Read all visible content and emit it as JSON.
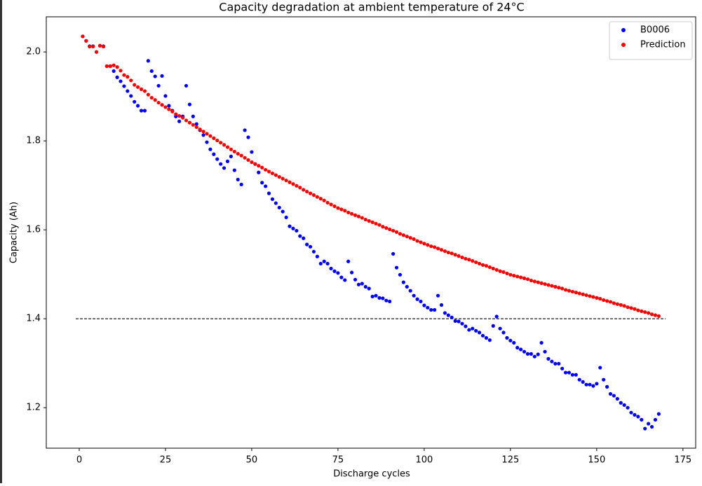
{
  "chart_data": {
    "type": "scatter",
    "title": "Capacity degradation at ambient temperature of 24°C",
    "xlabel": "Discharge cycles",
    "ylabel": "Capacity (Ah)",
    "xlim": [
      -9.55,
      178.7
    ],
    "ylim": [
      1.109,
      2.079
    ],
    "xticks": [
      0,
      25,
      50,
      75,
      100,
      125,
      150,
      175
    ],
    "yticks": [
      1.2,
      1.4,
      1.6,
      1.8,
      {
        "value": 2,
        "label": "2.0"
      }
    ],
    "legend": "upper right",
    "hline": {
      "y": 1.4,
      "x": [
        -1,
        170
      ],
      "color": "#000000"
    },
    "x": [
      1,
      2,
      3,
      4,
      5,
      6,
      7,
      8,
      9,
      10,
      11,
      12,
      13,
      14,
      15,
      16,
      17,
      18,
      19,
      20,
      21,
      22,
      23,
      24,
      25,
      26,
      27,
      28,
      29,
      30,
      31,
      32,
      33,
      34,
      35,
      36,
      37,
      38,
      39,
      40,
      41,
      42,
      43,
      44,
      45,
      46,
      47,
      48,
      49,
      50,
      51,
      52,
      53,
      54,
      55,
      56,
      57,
      58,
      59,
      60,
      61,
      62,
      63,
      64,
      65,
      66,
      67,
      68,
      69,
      70,
      71,
      72,
      73,
      74,
      75,
      76,
      77,
      78,
      79,
      80,
      81,
      82,
      83,
      84,
      85,
      86,
      87,
      88,
      89,
      90,
      91,
      92,
      93,
      94,
      95,
      96,
      97,
      98,
      99,
      100,
      101,
      102,
      103,
      104,
      105,
      106,
      107,
      108,
      109,
      110,
      111,
      112,
      113,
      114,
      115,
      116,
      117,
      118,
      119,
      120,
      121,
      122,
      123,
      124,
      125,
      126,
      127,
      128,
      129,
      130,
      131,
      132,
      133,
      134,
      135,
      136,
      137,
      138,
      139,
      140,
      141,
      142,
      143,
      144,
      145,
      146,
      147,
      148,
      149,
      150,
      151,
      152,
      153,
      154,
      155,
      156,
      157,
      158,
      159,
      160,
      161,
      162,
      163,
      164,
      165,
      166,
      167,
      168
    ],
    "series": [
      {
        "name": "B0006",
        "color": "#0000ff",
        "values": [
          2.035,
          2.025,
          2.013,
          2.013,
          2.0,
          2.014,
          2.013,
          1.968,
          1.968,
          1.957,
          1.943,
          1.934,
          1.923,
          1.912,
          1.901,
          1.888,
          1.879,
          1.868,
          1.868,
          1.98,
          1.957,
          1.945,
          1.924,
          1.946,
          1.901,
          1.879,
          1.868,
          1.855,
          1.844,
          1.855,
          1.924,
          1.882,
          1.855,
          1.838,
          1.824,
          1.813,
          1.797,
          1.781,
          1.77,
          1.759,
          1.748,
          1.739,
          1.754,
          1.765,
          1.734,
          1.713,
          1.702,
          1.824,
          1.808,
          1.775,
          1.748,
          1.729,
          1.706,
          1.698,
          1.682,
          1.669,
          1.66,
          1.65,
          1.641,
          1.628,
          1.608,
          1.603,
          1.598,
          1.586,
          1.581,
          1.567,
          1.562,
          1.551,
          1.54,
          1.524,
          1.529,
          1.524,
          1.513,
          1.507,
          1.503,
          1.493,
          1.487,
          1.529,
          1.504,
          1.488,
          1.477,
          1.479,
          1.472,
          1.468,
          1.45,
          1.452,
          1.447,
          1.446,
          1.441,
          1.439,
          1.546,
          1.515,
          1.499,
          1.482,
          1.472,
          1.463,
          1.452,
          1.444,
          1.439,
          1.43,
          1.425,
          1.42,
          1.42,
          1.452,
          1.431,
          1.413,
          1.408,
          1.403,
          1.395,
          1.394,
          1.389,
          1.383,
          1.375,
          1.378,
          1.373,
          1.369,
          1.362,
          1.357,
          1.352,
          1.384,
          1.405,
          1.378,
          1.369,
          1.357,
          1.351,
          1.346,
          1.335,
          1.331,
          1.326,
          1.321,
          1.321,
          1.315,
          1.32,
          1.346,
          1.326,
          1.31,
          1.304,
          1.299,
          1.299,
          1.288,
          1.279,
          1.279,
          1.274,
          1.274,
          1.263,
          1.258,
          1.252,
          1.252,
          1.249,
          1.254,
          1.29,
          1.263,
          1.247,
          1.231,
          1.227,
          1.22,
          1.211,
          1.206,
          1.2,
          1.189,
          1.184,
          1.18,
          1.173,
          1.153,
          1.164,
          1.157,
          1.173,
          1.186
        ]
      },
      {
        "name": "Prediction",
        "color": "#ff0000",
        "values": [
          2.035,
          2.025,
          2.012,
          2.012,
          2.0,
          2.014,
          2.012,
          1.968,
          1.968,
          1.97,
          1.966,
          1.958,
          1.948,
          1.944,
          1.936,
          1.926,
          1.921,
          1.916,
          1.912,
          1.904,
          1.897,
          1.892,
          1.886,
          1.881,
          1.876,
          1.871,
          1.866,
          1.86,
          1.856,
          1.852,
          1.846,
          1.841,
          1.836,
          1.831,
          1.826,
          1.821,
          1.816,
          1.811,
          1.806,
          1.801,
          1.796,
          1.791,
          1.786,
          1.781,
          1.776,
          1.771,
          1.767,
          1.762,
          1.757,
          1.752,
          1.748,
          1.744,
          1.74,
          1.735,
          1.731,
          1.727,
          1.723,
          1.719,
          1.715,
          1.711,
          1.707,
          1.703,
          1.699,
          1.695,
          1.69,
          1.686,
          1.682,
          1.678,
          1.674,
          1.67,
          1.666,
          1.661,
          1.657,
          1.653,
          1.649,
          1.646,
          1.643,
          1.639,
          1.636,
          1.633,
          1.63,
          1.627,
          1.623,
          1.62,
          1.617,
          1.614,
          1.611,
          1.607,
          1.604,
          1.601,
          1.598,
          1.595,
          1.591,
          1.588,
          1.585,
          1.582,
          1.579,
          1.575,
          1.572,
          1.569,
          1.566,
          1.563,
          1.561,
          1.558,
          1.555,
          1.552,
          1.549,
          1.547,
          1.544,
          1.541,
          1.538,
          1.535,
          1.533,
          1.53,
          1.527,
          1.524,
          1.521,
          1.519,
          1.516,
          1.513,
          1.51,
          1.507,
          1.505,
          1.502,
          1.499,
          1.497,
          1.495,
          1.493,
          1.491,
          1.489,
          1.486,
          1.484,
          1.482,
          1.48,
          1.478,
          1.476,
          1.474,
          1.472,
          1.47,
          1.468,
          1.465,
          1.463,
          1.461,
          1.459,
          1.457,
          1.455,
          1.453,
          1.451,
          1.449,
          1.447,
          1.445,
          1.442,
          1.44,
          1.438,
          1.435,
          1.433,
          1.431,
          1.429,
          1.426,
          1.424,
          1.422,
          1.419,
          1.417,
          1.415,
          1.413,
          1.41,
          1.408,
          1.406
        ]
      }
    ]
  }
}
